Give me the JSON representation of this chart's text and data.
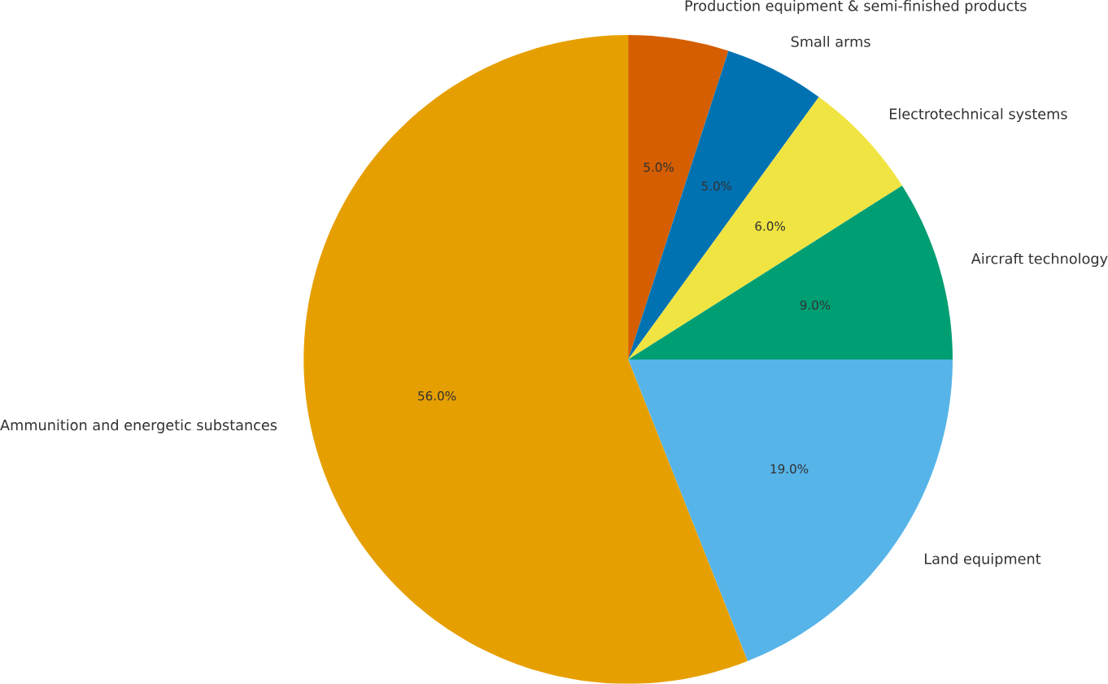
{
  "chart_data": {
    "type": "pie",
    "categories": [
      "Production equipment & semi-finished products",
      "Small arms",
      "Electrotechnical systems",
      "Aircraft technology",
      "Land equipment",
      "Ammunition and energetic substances"
    ],
    "values": [
      5,
      5,
      6,
      9,
      19,
      56
    ],
    "colors": [
      "#d55e00",
      "#0072b2",
      "#f0e442",
      "#009e73",
      "#56b4e9",
      "#e69f00"
    ],
    "value_labels": [
      "5.0%",
      "5.0%",
      "6.0%",
      "9.0%",
      "19.0%",
      "56.0%"
    ]
  }
}
